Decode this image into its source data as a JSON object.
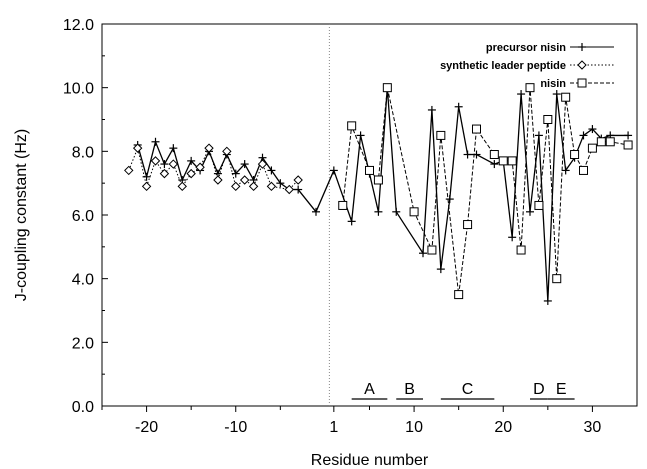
{
  "chart_data": {
    "type": "line",
    "title": "",
    "xlabel": "Residue number",
    "ylabel": "J-coupling constant (Hz)",
    "xlim": [
      -25,
      35
    ],
    "ylim": [
      0.0,
      12.0
    ],
    "x_ticks": [
      {
        "value": -20,
        "label": "-20"
      },
      {
        "value": -10,
        "label": "-10"
      },
      {
        "value": 1,
        "label": "1"
      },
      {
        "value": 10,
        "label": "10"
      },
      {
        "value": 20,
        "label": "20"
      },
      {
        "value": 30,
        "label": "30"
      }
    ],
    "y_ticks": [
      {
        "value": 0,
        "label": "0.0"
      },
      {
        "value": 2,
        "label": "2.0"
      },
      {
        "value": 4,
        "label": "4.0"
      },
      {
        "value": 6,
        "label": "6.0"
      },
      {
        "value": 8,
        "label": "8.0"
      },
      {
        "value": 10,
        "label": "10.0"
      },
      {
        "value": 12,
        "label": "12.0"
      }
    ],
    "reference_line_x": 0.5,
    "legend_position": "top-right",
    "series": [
      {
        "name": "precursor nisin",
        "marker": "plus",
        "line": "solid",
        "x": [
          -21,
          -20,
          -19,
          -18,
          -17,
          -16,
          -15,
          -14,
          -13,
          -12,
          -11,
          -10,
          -9,
          -8,
          -7,
          -6,
          -5,
          -4,
          -3,
          -1,
          1,
          3,
          4,
          5,
          6,
          7,
          8,
          11,
          12,
          13,
          14,
          15,
          16,
          17,
          19,
          20,
          21,
          22,
          23,
          24,
          25,
          26,
          27,
          28,
          29,
          30,
          31,
          32,
          34
        ],
        "y": [
          8.2,
          7.2,
          8.3,
          7.6,
          8.1,
          7.1,
          7.7,
          7.4,
          8.0,
          7.3,
          7.9,
          7.3,
          7.6,
          7.1,
          7.8,
          7.4,
          7.0,
          6.8,
          6.8,
          6.1,
          7.4,
          5.8,
          8.5,
          7.3,
          6.1,
          10.0,
          6.1,
          4.8,
          9.3,
          4.3,
          6.5,
          9.4,
          7.9,
          7.9,
          7.6,
          7.7,
          5.3,
          9.8,
          6.1,
          8.5,
          3.3,
          9.8,
          7.4,
          7.8,
          8.5,
          8.7,
          8.4,
          8.5,
          8.5
        ]
      },
      {
        "name": "synthetic leader peptide",
        "marker": "diamond",
        "line": "dotted",
        "x": [
          -22,
          -21,
          -20,
          -19,
          -18,
          -17,
          -16,
          -15,
          -14,
          -13,
          -12,
          -11,
          -10,
          -9,
          -8,
          -7,
          -6,
          -4,
          -3
        ],
        "y": [
          7.4,
          8.1,
          6.9,
          7.7,
          7.3,
          7.6,
          6.9,
          7.3,
          7.5,
          8.1,
          7.1,
          8.0,
          6.9,
          7.1,
          6.9,
          7.6,
          6.9,
          6.8,
          7.1
        ]
      },
      {
        "name": "nisin",
        "marker": "square",
        "line": "dashed",
        "x": [
          2,
          3,
          5,
          6,
          7,
          10,
          12,
          13,
          15,
          16,
          17,
          19,
          20,
          21,
          22,
          23,
          24,
          25,
          26,
          27,
          28,
          29,
          30,
          31,
          32,
          34
        ],
        "y": [
          6.3,
          8.8,
          7.4,
          7.1,
          10.0,
          6.1,
          4.9,
          8.5,
          3.5,
          5.7,
          8.7,
          7.9,
          7.7,
          7.7,
          4.9,
          10.0,
          6.3,
          9.0,
          4.0,
          9.7,
          7.9,
          7.4,
          8.1,
          8.3,
          8.3,
          8.2
        ]
      }
    ],
    "regions": [
      {
        "label": "A",
        "x_start": 3,
        "x_end": 7
      },
      {
        "label": "B",
        "x_start": 8,
        "x_end": 11
      },
      {
        "label": "C",
        "x_start": 13,
        "x_end": 19
      },
      {
        "label": "D",
        "x_start": 23,
        "x_end": 25
      },
      {
        "label": "E",
        "x_start": 25,
        "x_end": 28
      }
    ]
  }
}
